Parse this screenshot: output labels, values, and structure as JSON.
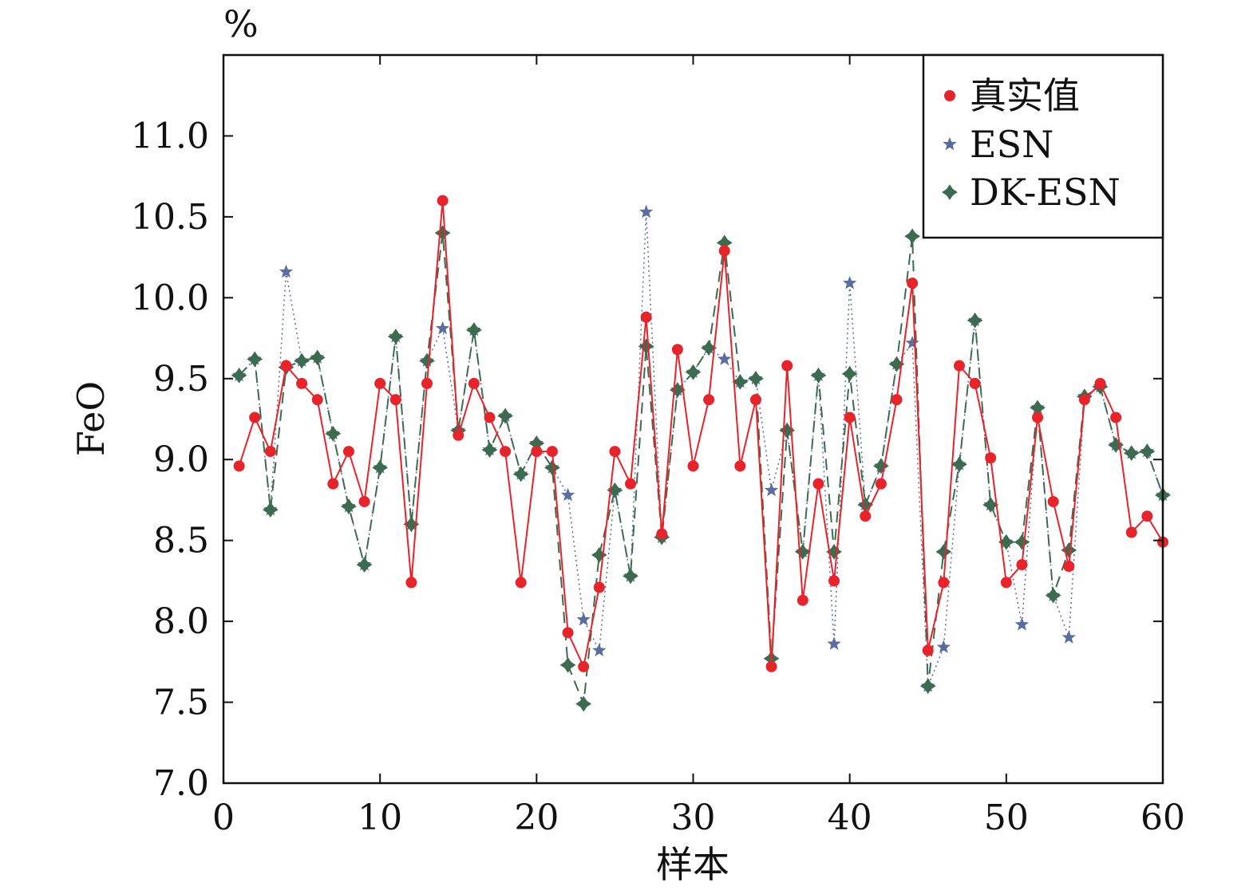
{
  "chart_data": {
    "type": "line",
    "title": "",
    "unit_label": "%",
    "xlabel": "样本",
    "ylabel": "FeO",
    "xlim": [
      0,
      60
    ],
    "ylim": [
      7.0,
      11.5
    ],
    "x_ticks": [
      0,
      10,
      20,
      30,
      40,
      50,
      60
    ],
    "x_tick_labels": [
      "0",
      "10",
      "20",
      "30",
      "40",
      "50",
      "60"
    ],
    "y_ticks": [
      7.0,
      7.5,
      8.0,
      8.5,
      9.0,
      9.5,
      10.0,
      10.5,
      11.0
    ],
    "y_tick_labels": [
      "7.0",
      "7.5",
      "8.0",
      "8.5",
      "9.0",
      "9.5",
      "10.0",
      "10.5",
      "11.0"
    ],
    "grid": false,
    "legend_position": "top-right",
    "x": [
      1,
      2,
      3,
      4,
      5,
      6,
      7,
      8,
      9,
      10,
      11,
      12,
      13,
      14,
      15,
      16,
      17,
      18,
      19,
      20,
      21,
      22,
      23,
      24,
      25,
      26,
      27,
      28,
      29,
      30,
      31,
      32,
      33,
      34,
      35,
      36,
      37,
      38,
      39,
      40,
      41,
      42,
      43,
      44,
      45,
      46,
      47,
      48,
      49,
      50,
      51,
      52,
      53,
      54,
      55,
      56,
      57,
      58,
      59,
      60
    ],
    "series": [
      {
        "name": "真实值",
        "color": "#e8232a",
        "marker": "circle",
        "line_style": "solid",
        "values": [
          8.96,
          9.26,
          9.05,
          9.58,
          9.47,
          9.37,
          8.85,
          9.05,
          8.74,
          9.47,
          9.37,
          8.24,
          9.47,
          10.6,
          9.15,
          9.47,
          9.26,
          9.05,
          8.24,
          9.05,
          9.05,
          7.93,
          7.72,
          8.21,
          9.05,
          8.85,
          9.88,
          8.54,
          9.68,
          8.96,
          9.37,
          10.29,
          8.96,
          9.37,
          7.72,
          9.58,
          8.13,
          8.85,
          8.25,
          9.26,
          8.65,
          8.85,
          9.37,
          10.09,
          7.82,
          8.24,
          9.58,
          9.47,
          9.01,
          8.24,
          8.35,
          9.26,
          8.74,
          8.34,
          9.37,
          9.47,
          9.26,
          8.55,
          8.65,
          8.49
        ]
      },
      {
        "name": "ESN",
        "color": "#5b6d9e",
        "marker": "star",
        "line_style": "dotted",
        "values": [
          9.52,
          9.62,
          8.69,
          10.16,
          9.61,
          9.63,
          9.16,
          8.71,
          8.35,
          8.95,
          9.76,
          8.6,
          9.61,
          9.81,
          9.18,
          9.8,
          9.06,
          9.27,
          8.91,
          9.1,
          8.95,
          8.78,
          8.01,
          7.82,
          8.81,
          8.28,
          10.53,
          8.52,
          9.43,
          9.54,
          9.69,
          9.62,
          9.48,
          9.5,
          8.81,
          9.18,
          8.43,
          9.52,
          7.86,
          10.09,
          8.72,
          8.96,
          9.59,
          9.72,
          7.6,
          7.84,
          8.97,
          9.86,
          8.72,
          8.49,
          7.98,
          9.32,
          8.16,
          7.9,
          9.39,
          9.45,
          9.09,
          9.04,
          9.05,
          8.78
        ]
      },
      {
        "name": "DK-ESN",
        "color": "#3c6b50",
        "marker": "diamond",
        "line_style": "dashed",
        "values": [
          9.52,
          9.62,
          8.69,
          9.57,
          9.61,
          9.63,
          9.16,
          8.71,
          8.35,
          8.95,
          9.76,
          8.6,
          9.61,
          10.4,
          9.18,
          9.8,
          9.06,
          9.27,
          8.91,
          9.1,
          8.95,
          7.73,
          7.49,
          8.41,
          8.81,
          8.28,
          9.7,
          8.52,
          9.43,
          9.54,
          9.69,
          10.34,
          9.48,
          9.5,
          7.77,
          9.18,
          8.43,
          9.52,
          8.43,
          9.53,
          8.72,
          8.96,
          9.59,
          10.38,
          7.6,
          8.43,
          8.97,
          9.86,
          8.72,
          8.49,
          8.49,
          9.32,
          8.16,
          8.44,
          9.39,
          9.45,
          9.09,
          9.04,
          9.05,
          8.78
        ]
      }
    ]
  }
}
